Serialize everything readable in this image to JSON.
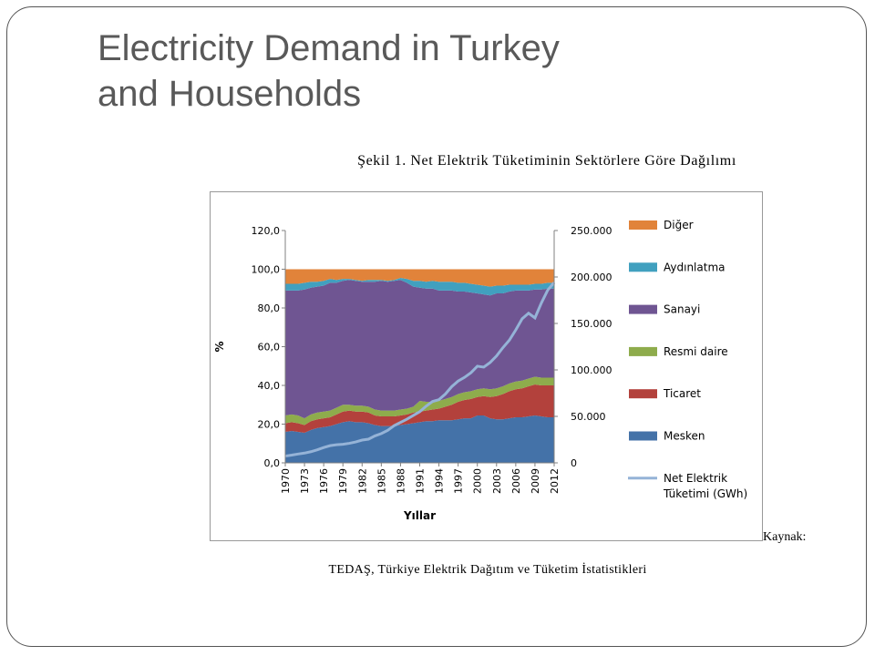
{
  "slide": {
    "title_line1": "Electricity Demand in Turkey",
    "title_line2": "and Households"
  },
  "figure": {
    "title": "Şekil 1. Net Elektrik Tüketiminin Sektörlere Göre Dağılımı",
    "source_label": "Kaynak:",
    "source_text": "TEDAŞ, Türkiye Elektrik Dağıtım ve Tüketim İstatistikleri"
  },
  "chart_data": {
    "type": "area",
    "subtype": "stacked area with line on secondary axis",
    "title": "",
    "xlabel": "Yıllar",
    "ylabel": "%",
    "ylim": [
      0,
      120
    ],
    "y_ticks": [
      "0,0",
      "20,0",
      "40,0",
      "60,0",
      "80,0",
      "100,0",
      "120,0"
    ],
    "y2lim": [
      0,
      250000
    ],
    "y2_ticks": [
      "0",
      "50.000",
      "100.000",
      "150.000",
      "200.000",
      "250.000"
    ],
    "x_ticks": [
      "1970",
      "1973",
      "1976",
      "1979",
      "1982",
      "1985",
      "1988",
      "1991",
      "1994",
      "1997",
      "2000",
      "2003",
      "2006",
      "2009",
      "2012"
    ],
    "x": [
      1970,
      1971,
      1972,
      1973,
      1974,
      1975,
      1976,
      1977,
      1978,
      1979,
      1980,
      1981,
      1982,
      1983,
      1984,
      1985,
      1986,
      1987,
      1988,
      1989,
      1990,
      1991,
      1992,
      1993,
      1994,
      1995,
      1996,
      1997,
      1998,
      1999,
      2000,
      2001,
      2002,
      2003,
      2004,
      2005,
      2006,
      2007,
      2008,
      2009,
      2010,
      2011,
      2012
    ],
    "legend_position": "right",
    "grid": false,
    "series": [
      {
        "name": "Mesken",
        "color": "#4472a8",
        "values": [
          16.0,
          16.5,
          16.0,
          15.5,
          17.0,
          18.0,
          18.5,
          19.0,
          20.0,
          21.0,
          21.5,
          21.0,
          21.0,
          20.5,
          19.5,
          19.0,
          19.0,
          19.0,
          19.5,
          20.0,
          20.5,
          21.0,
          21.5,
          21.5,
          22.0,
          22.0,
          22.0,
          22.5,
          23.0,
          23.0,
          24.5,
          24.5,
          23.0,
          22.5,
          22.5,
          23.0,
          23.5,
          23.5,
          24.0,
          24.5,
          24.0,
          23.5,
          23.5
        ]
      },
      {
        "name": "Ticaret",
        "color": "#b3413c",
        "values": [
          4.5,
          4.5,
          4.5,
          4.0,
          4.5,
          4.5,
          4.5,
          4.5,
          5.0,
          5.5,
          5.5,
          5.5,
          5.5,
          5.5,
          5.0,
          5.0,
          5.0,
          5.0,
          5.0,
          5.0,
          5.5,
          5.5,
          5.5,
          6.0,
          6.0,
          7.0,
          8.0,
          9.0,
          9.5,
          10.0,
          9.5,
          10.0,
          11.0,
          12.0,
          13.0,
          14.0,
          14.5,
          15.0,
          15.5,
          16.0,
          16.0,
          16.5,
          16.5
        ]
      },
      {
        "name": "Resmi daire",
        "color": "#8eac4c",
        "values": [
          4.0,
          4.0,
          4.0,
          3.5,
          3.5,
          3.5,
          3.5,
          3.5,
          3.5,
          3.5,
          3.0,
          3.0,
          3.0,
          3.0,
          3.0,
          3.0,
          3.0,
          3.0,
          3.0,
          3.0,
          3.0,
          5.5,
          4.5,
          4.0,
          4.0,
          4.0,
          4.0,
          4.0,
          4.0,
          4.0,
          4.0,
          4.0,
          4.0,
          4.0,
          4.0,
          4.0,
          4.0,
          4.0,
          4.0,
          4.0,
          4.0,
          4.0,
          4.0
        ]
      },
      {
        "name": "Sanayi",
        "color": "#6f5592",
        "values": [
          64.5,
          64.0,
          64.5,
          66.5,
          65.5,
          65.0,
          65.0,
          66.0,
          64.5,
          64.0,
          64.5,
          64.5,
          64.0,
          64.5,
          66.0,
          67.0,
          66.5,
          67.0,
          67.0,
          65.0,
          62.0,
          58.5,
          58.5,
          58.5,
          57.0,
          56.0,
          55.0,
          53.0,
          52.0,
          51.0,
          49.5,
          48.5,
          48.5,
          49.0,
          48.0,
          47.5,
          47.0,
          46.5,
          45.5,
          45.0,
          45.5,
          46.0,
          46.0
        ]
      },
      {
        "name": "Aydınlatma",
        "color": "#41a0bf",
        "values": [
          3.5,
          3.5,
          3.5,
          3.5,
          3.0,
          2.5,
          2.5,
          2.0,
          1.5,
          1.0,
          0.5,
          0.5,
          0.5,
          1.0,
          1.0,
          0.5,
          0.5,
          0.5,
          1.0,
          2.0,
          3.0,
          3.5,
          3.5,
          4.0,
          4.5,
          4.5,
          4.5,
          4.5,
          4.5,
          4.5,
          4.5,
          4.5,
          4.5,
          4.0,
          4.0,
          3.5,
          3.0,
          3.0,
          3.0,
          3.0,
          3.0,
          3.0,
          3.0
        ]
      },
      {
        "name": "Diğer",
        "color": "#e1833a",
        "values": [
          7.5,
          7.5,
          7.5,
          7.0,
          6.5,
          6.5,
          6.0,
          5.0,
          5.5,
          5.0,
          5.0,
          5.5,
          6.0,
          5.5,
          5.5,
          5.5,
          6.0,
          5.5,
          4.5,
          5.0,
          6.0,
          6.0,
          6.5,
          6.0,
          6.5,
          6.5,
          6.5,
          7.0,
          7.0,
          7.5,
          8.0,
          8.5,
          9.0,
          8.5,
          8.5,
          8.0,
          8.0,
          8.0,
          8.0,
          7.5,
          7.5,
          7.0,
          7.0
        ]
      },
      {
        "name": "Net Elektrik Tüketimi (GWh)",
        "color": "#95b3d7",
        "axis": "secondary",
        "line": true,
        "values": [
          7300,
          8300,
          9500,
          10500,
          12000,
          14000,
          16500,
          18500,
          19500,
          20000,
          21000,
          22500,
          24500,
          25500,
          29000,
          31500,
          35000,
          40000,
          43500,
          47000,
          51000,
          55000,
          61000,
          66000,
          68000,
          74000,
          82000,
          88000,
          92000,
          97000,
          104000,
          103000,
          108000,
          115000,
          124000,
          132000,
          143000,
          155000,
          161000,
          156000,
          172000,
          186000,
          194000
        ]
      }
    ]
  }
}
